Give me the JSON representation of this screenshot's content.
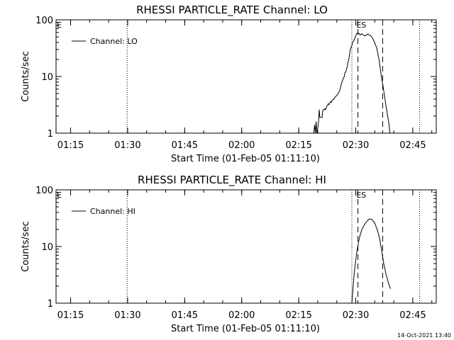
{
  "stamp": "14-Oct-2021 13:40",
  "chart_data": [
    {
      "type": "line",
      "title": "RHESSI PARTICLE_RATE Channel: LO",
      "ylabel": "Counts/sec",
      "xlabel": "Start Time (01-Feb-05 01:11:10)",
      "x_unit": "minutes since 01:11:10",
      "xlim": [
        0,
        100
      ],
      "ylim": [
        1,
        100
      ],
      "yscale": "log",
      "x_ticks": [
        {
          "x": 3.83,
          "label": "01:15"
        },
        {
          "x": 18.83,
          "label": "01:30"
        },
        {
          "x": 33.83,
          "label": "01:45"
        },
        {
          "x": 48.83,
          "label": "02:00"
        },
        {
          "x": 63.83,
          "label": "02:15"
        },
        {
          "x": 78.83,
          "label": "02:30"
        },
        {
          "x": 93.83,
          "label": "02:45"
        }
      ],
      "y_ticks": [
        {
          "y": 1,
          "label": "1"
        },
        {
          "y": 10,
          "label": "10"
        },
        {
          "y": 100,
          "label": "100"
        }
      ],
      "corner_label": "E",
      "legend": "Channel: LO",
      "dotted_lines_x": [
        18.7,
        77.8,
        95.6
      ],
      "dashed_lines_x": [
        79.4,
        85.9
      ],
      "markers": [
        {
          "x": 78.8,
          "label": "ES"
        }
      ],
      "series": [
        {
          "name": "Channel: LO",
          "x": [
            67.8,
            68.0,
            68.2,
            68.4,
            68.6,
            68.9,
            69.1,
            69.2,
            69.4,
            69.6,
            69.8,
            70.0,
            70.1,
            70.3,
            70.5,
            70.7,
            70.8,
            71.0,
            71.2,
            71.4,
            71.6,
            71.8,
            72.0,
            72.2,
            72.4,
            72.6,
            72.8,
            73.0,
            73.2,
            73.4,
            73.6,
            73.8,
            74.0,
            74.2,
            74.4,
            74.6,
            74.8,
            75.0,
            75.2,
            75.4,
            75.6,
            75.8,
            76.0,
            76.2,
            76.4,
            76.6,
            76.8,
            77.0,
            77.2,
            77.4,
            77.6,
            77.8,
            78.0,
            78.2,
            78.4,
            78.6,
            78.8,
            79.0,
            79.2,
            79.4,
            79.6,
            79.8,
            80.0,
            80.2,
            80.4,
            80.6,
            80.8,
            81.0,
            81.2,
            81.4,
            81.6,
            81.8,
            82.0,
            82.2,
            82.4,
            82.6,
            82.8,
            83.0,
            83.2,
            83.4,
            83.6,
            83.8,
            84.0,
            84.2,
            84.4,
            84.6,
            84.8,
            85.0,
            85.2,
            85.4,
            85.6,
            85.8,
            86.0,
            86.2,
            86.4,
            86.6,
            86.8,
            87.0,
            87.2,
            87.4,
            87.6,
            87.8,
            88.0
          ],
          "values": [
            1.0,
            1.4,
            1.0,
            1.6,
            1.0,
            1.3,
            1.8,
            2.6,
            1.9,
            1.9,
            1.9,
            1.9,
            2.4,
            2.6,
            2.6,
            2.7,
            2.6,
            2.7,
            3.0,
            3.1,
            3.3,
            3.2,
            3.4,
            3.6,
            3.5,
            3.8,
            3.9,
            3.9,
            4.2,
            4.3,
            4.5,
            4.6,
            4.8,
            5.0,
            5.3,
            5.7,
            6.3,
            7.2,
            8.0,
            8.6,
            9.4,
            10.0,
            11.8,
            12.0,
            13.5,
            15.0,
            17.8,
            20.0,
            25.0,
            30.0,
            33.0,
            35.0,
            40.0,
            42.0,
            44.0,
            48.0,
            52.0,
            56.0,
            58.0,
            57.0,
            58.0,
            56.0,
            54.0,
            55.0,
            57.0,
            56.0,
            54.0,
            53.0,
            52.0,
            53.0,
            54.0,
            55.0,
            56.0,
            55.0,
            54.0,
            53.0,
            52.0,
            50.0,
            48.0,
            45.0,
            42.0,
            40.0,
            36.0,
            34.0,
            30.0,
            26.0,
            22.0,
            19.0,
            15.0,
            12.0,
            9.5,
            8.0,
            6.8,
            5.5,
            4.6,
            3.6,
            3.0,
            2.5,
            2.0,
            1.7,
            1.4,
            1.0,
            1.0
          ]
        }
      ]
    },
    {
      "type": "line",
      "title": "RHESSI PARTICLE_RATE Channel: HI",
      "ylabel": "Counts/sec",
      "xlabel": "Start Time (01-Feb-05 01:11:10)",
      "x_unit": "minutes since 01:11:10",
      "xlim": [
        0,
        100
      ],
      "ylim": [
        1,
        100
      ],
      "yscale": "log",
      "x_ticks": [
        {
          "x": 3.83,
          "label": "01:15"
        },
        {
          "x": 18.83,
          "label": "01:30"
        },
        {
          "x": 33.83,
          "label": "01:45"
        },
        {
          "x": 48.83,
          "label": "02:00"
        },
        {
          "x": 63.83,
          "label": "02:15"
        },
        {
          "x": 78.83,
          "label": "02:30"
        },
        {
          "x": 93.83,
          "label": "02:45"
        }
      ],
      "y_ticks": [
        {
          "y": 1,
          "label": "1"
        },
        {
          "y": 10,
          "label": "10"
        },
        {
          "y": 100,
          "label": "100"
        }
      ],
      "corner_label": "E",
      "legend": "Channel: HI",
      "dotted_lines_x": [
        18.7,
        77.8,
        95.6
      ],
      "dashed_lines_x": [
        79.4,
        85.9
      ],
      "markers": [
        {
          "x": 78.8,
          "label": "ES"
        }
      ],
      "series": [
        {
          "name": "Channel: HI",
          "x": [
            77.8,
            78.0,
            78.2,
            78.4,
            78.6,
            78.8,
            79.0,
            79.2,
            79.4,
            79.6,
            79.8,
            80.0,
            80.2,
            80.4,
            80.6,
            80.8,
            81.0,
            81.2,
            81.4,
            81.6,
            81.8,
            82.0,
            82.2,
            82.4,
            82.6,
            82.8,
            83.0,
            83.2,
            83.4,
            83.6,
            83.8,
            84.0,
            84.2,
            84.4,
            84.6,
            84.8,
            85.0,
            85.2,
            85.4,
            85.6,
            85.8,
            86.0,
            86.2,
            86.4,
            86.6,
            86.8,
            87.0,
            87.2,
            87.4,
            87.6,
            87.8,
            88.0
          ],
          "values": [
            1.0,
            1.5,
            2.3,
            3.2,
            4.3,
            5.6,
            7.0,
            8.7,
            10.4,
            12.3,
            14.2,
            16.2,
            17.8,
            19.6,
            21.0,
            22.3,
            23.5,
            24.8,
            26.0,
            27.0,
            28.0,
            29.0,
            30.0,
            30.4,
            30.8,
            30.4,
            30.0,
            29.0,
            28.0,
            27.0,
            26.0,
            24.2,
            22.2,
            20.5,
            18.4,
            16.6,
            14.7,
            12.8,
            10.6,
            8.9,
            7.2,
            5.9,
            4.9,
            4.4,
            3.7,
            3.2,
            2.9,
            2.6,
            2.3,
            2.1,
            1.9,
            1.8
          ]
        }
      ]
    }
  ]
}
